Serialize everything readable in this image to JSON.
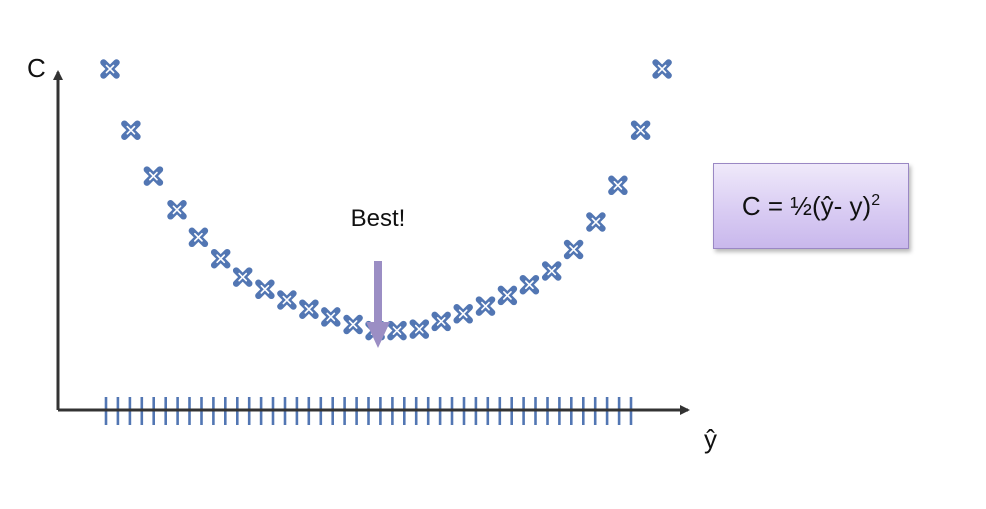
{
  "chart_data": {
    "type": "scatter",
    "xlabel": "ŷ",
    "ylabel": "C",
    "ylim": [
      0,
      1
    ],
    "grid": false,
    "legend": "none",
    "marker": "x",
    "colors": {
      "marker": "#5276b3",
      "tick": "#5276b3",
      "axis": "#333333",
      "arrow": "#9b8ec4"
    },
    "x_ticks_count": 45,
    "points": [
      {
        "x": -1.0,
        "y": 1.0
      },
      {
        "x": -0.922,
        "y": 0.8
      },
      {
        "x": -0.838,
        "y": 0.65
      },
      {
        "x": -0.75,
        "y": 0.54
      },
      {
        "x": -0.67,
        "y": 0.45
      },
      {
        "x": -0.587,
        "y": 0.38
      },
      {
        "x": -0.505,
        "y": 0.32
      },
      {
        "x": -0.422,
        "y": 0.28
      },
      {
        "x": -0.34,
        "y": 0.245
      },
      {
        "x": -0.258,
        "y": 0.215
      },
      {
        "x": -0.176,
        "y": 0.19
      },
      {
        "x": -0.093,
        "y": 0.165
      },
      {
        "x": -0.011,
        "y": 0.145
      },
      {
        "x": 0.071,
        "y": 0.145
      },
      {
        "x": 0.154,
        "y": 0.15
      },
      {
        "x": 0.236,
        "y": 0.175
      },
      {
        "x": 0.318,
        "y": 0.2
      },
      {
        "x": 0.401,
        "y": 0.225
      },
      {
        "x": 0.483,
        "y": 0.26
      },
      {
        "x": 0.565,
        "y": 0.295
      },
      {
        "x": 0.648,
        "y": 0.34
      },
      {
        "x": 0.73,
        "y": 0.41
      },
      {
        "x": 0.813,
        "y": 0.5
      },
      {
        "x": 0.895,
        "y": 0.62
      },
      {
        "x": 0.98,
        "y": 0.8
      },
      {
        "x": 1.06,
        "y": 1.0
      }
    ],
    "annotation": {
      "text": "Best!",
      "x": 0.0,
      "y": 0.145
    },
    "formula": {
      "lhs": "C = ½(ŷ- y)",
      "exponent": "2"
    }
  }
}
